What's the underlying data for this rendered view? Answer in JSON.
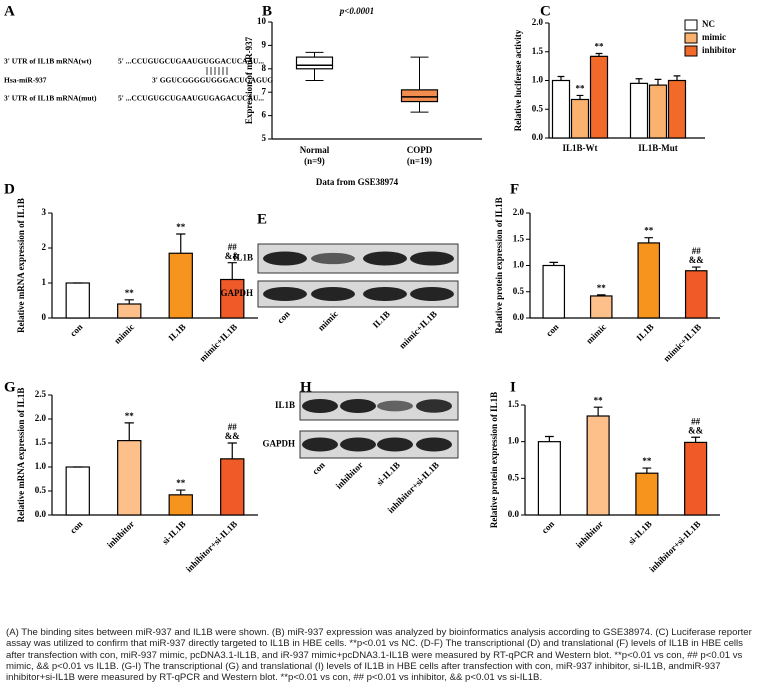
{
  "panel_labels": [
    "A",
    "B",
    "C",
    "D",
    "E",
    "F",
    "G",
    "H",
    "I"
  ],
  "binding": {
    "rows": [
      {
        "label": "3' UTR of IL1B mRNA(wt)",
        "sequence": "5' ...CCUGUGCUGAAUGUGGACUCAAU..."
      },
      {
        "label": "Hsa-miR-937",
        "sequence": "3' GGUCGGGGUGGGACUGAGUG"
      },
      {
        "label": "3' UTR of IL1B mRNA(mut)",
        "sequence": "5' ...CCUGUGCUGAAUGUGAGACUCAU..."
      }
    ]
  },
  "chart_data": [
    {
      "type": "box",
      "title": "p<0.0001",
      "y_label": "Expression of miR-937",
      "x_label": "Data from GSE38974",
      "categories": [
        "Normal",
        "COPD"
      ],
      "category_notes": [
        "(n=9)",
        "(n=19)"
      ],
      "boxes": [
        {
          "min": 7.5,
          "q1": 8.0,
          "median": 8.15,
          "q3": 8.5,
          "max": 8.7
        },
        {
          "min": 6.15,
          "q1": 6.6,
          "median": 6.8,
          "q3": 7.1,
          "max": 8.5
        }
      ],
      "colors": [
        "#ffffff",
        "#f28c4f"
      ],
      "ylim": [
        5,
        10
      ],
      "yticks": [
        5,
        6,
        7,
        8,
        9,
        10
      ]
    },
    {
      "type": "bar",
      "y_label": "Relative luciferase activity",
      "categories": [
        "IL1B-Wt",
        "IL1B-Mut"
      ],
      "series": [
        {
          "name": "NC",
          "color": "#ffffff",
          "values": [
            1.0,
            0.95
          ],
          "errors": [
            0.07,
            0.08
          ]
        },
        {
          "name": "mimic",
          "color": "#fbb26e",
          "values": [
            0.67,
            0.92
          ],
          "errors": [
            0.07,
            0.1
          ],
          "annotations": [
            [
              "**"
            ],
            null
          ]
        },
        {
          "name": "inhibitor",
          "color": "#f26a2a",
          "values": [
            1.42,
            1.0
          ],
          "errors": [
            0.05,
            0.08
          ],
          "annotations": [
            [
              "**"
            ],
            null
          ]
        }
      ],
      "ylim": [
        0,
        2
      ],
      "yticks": [
        {
          "value": 0,
          "label": "0.0"
        },
        0.5,
        {
          "value": 1,
          "label": "1.0"
        },
        1.5,
        {
          "value": 2,
          "label": "2.0"
        }
      ],
      "legend": "right"
    },
    {
      "type": "bar",
      "y_label": "Relative mRNA expression of IL1B",
      "categories": [
        "con",
        "mimic",
        "IL1B",
        "mimic+IL1B"
      ],
      "series": [
        {
          "colors": [
            "#ffffff",
            "#fdc08a",
            "#f7941d",
            "#f05a28"
          ],
          "values": [
            1.0,
            0.4,
            1.85,
            1.1
          ],
          "errors": [
            0,
            0.12,
            0.55,
            0.48
          ],
          "annotations": [
            null,
            [
              "**"
            ],
            [
              "**"
            ],
            [
              "##",
              "&&"
            ]
          ]
        }
      ],
      "ylim": [
        0,
        3
      ],
      "yticks": [
        0,
        1,
        2,
        3
      ]
    },
    {
      "type": "bar",
      "y_label": "Relative protein expression of IL1B",
      "categories": [
        "con",
        "mimic",
        "IL1B",
        "mimic+IL1B"
      ],
      "series": [
        {
          "colors": [
            "#ffffff",
            "#fdc08a",
            "#f7941d",
            "#f05a28"
          ],
          "values": [
            1.0,
            0.42,
            1.43,
            0.9
          ],
          "errors": [
            0.06,
            0.02,
            0.1,
            0.07
          ],
          "annotations": [
            null,
            [
              "**"
            ],
            [
              "**"
            ],
            [
              "##",
              "&&"
            ]
          ]
        }
      ],
      "ylim": [
        0,
        2
      ],
      "yticks": [
        {
          "value": 0,
          "label": "0.0"
        },
        0.5,
        {
          "value": 1,
          "label": "1.0"
        },
        1.5,
        {
          "value": 2,
          "label": "2.0"
        }
      ]
    },
    {
      "type": "bar",
      "y_label": "Relative mRNA expression of IL1B",
      "categories": [
        "con",
        "inhibitor",
        "si-IL1B",
        "inhibitor+si-IL1B"
      ],
      "series": [
        {
          "colors": [
            "#ffffff",
            "#fdc08a",
            "#f7941d",
            "#f05a28"
          ],
          "values": [
            1.0,
            1.55,
            0.42,
            1.17
          ],
          "errors": [
            0,
            0.37,
            0.1,
            0.33
          ],
          "annotations": [
            null,
            [
              "**"
            ],
            [
              "**"
            ],
            [
              "##",
              "&&"
            ]
          ]
        }
      ],
      "ylim": [
        0,
        2.5
      ],
      "yticks": [
        {
          "value": 0,
          "label": "0.0"
        },
        0.5,
        {
          "value": 1,
          "label": "1.0"
        },
        1.5,
        {
          "value": 2,
          "label": "2.0"
        },
        2.5
      ]
    },
    {
      "type": "bar",
      "y_label": "Relative protein expression of IL1B",
      "categories": [
        "con",
        "inhibitor",
        "si-IL1B",
        "inhibitor+si-IL1B"
      ],
      "series": [
        {
          "colors": [
            "#ffffff",
            "#fdc08a",
            "#f7941d",
            "#f05a28"
          ],
          "values": [
            1.0,
            1.35,
            0.57,
            0.99
          ],
          "errors": [
            0.07,
            0.12,
            0.07,
            0.07
          ],
          "annotations": [
            null,
            [
              "**"
            ],
            [
              "**"
            ],
            [
              "##",
              "&&"
            ]
          ]
        }
      ],
      "ylim": [
        0,
        1.5
      ],
      "yticks": [
        {
          "value": 0,
          "label": "0.0"
        },
        0.5,
        {
          "value": 1,
          "label": "1.0"
        },
        1.5
      ]
    }
  ],
  "blots": [
    {
      "rows": [
        "IL1B",
        "GAPDH"
      ],
      "lanes": [
        "con",
        "mimic",
        "IL1B",
        "mimic+IL1B"
      ]
    },
    {
      "rows": [
        "IL1B",
        "GAPDH"
      ],
      "lanes": [
        "con",
        "inhibitor",
        "si-IL1B",
        "inhibitor+si-IL1B"
      ]
    }
  ],
  "caption": "(A) The binding sites between miR-937 and IL1B were shown. (B) miR-937 expression was analyzed by bioinformatics analysis according to GSE38974. (C) Luciferase reporter assay was utilized to confirm that miR-937 directly targeted to IL1B in HBE cells. **p<0.01 vs NC. (D-F) The transcriptional (D) and translational (F) levels of IL1B in HBE cells after transfection with con, miR-937 mimic, pcDNA3.1-IL1B, and iR-937 mimic+pcDNA3.1-IL1B were measured by RT-qPCR and Western blot. **p<0.01 vs con, ## p<0.01 vs mimic, && p<0.01 vs IL1B. (G-I) The transcriptional (G) and translational (I) levels of IL1B in HBE cells after transfection with con, miR-937 inhibitor, si-IL1B, andmiR-937 inhibitor+si-IL1B were measured by RT-qPCR and Western blot. **p<0.01 vs con, ## p<0.01 vs inhibitor, && p<0.01 vs si-IL1B."
}
